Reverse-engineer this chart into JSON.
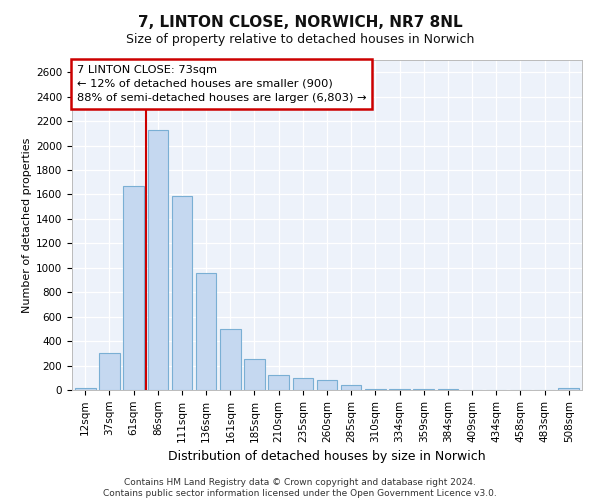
{
  "title": "7, LINTON CLOSE, NORWICH, NR7 8NL",
  "subtitle": "Size of property relative to detached houses in Norwich",
  "xlabel": "Distribution of detached houses by size in Norwich",
  "ylabel": "Number of detached properties",
  "categories": [
    "12sqm",
    "37sqm",
    "61sqm",
    "86sqm",
    "111sqm",
    "136sqm",
    "161sqm",
    "185sqm",
    "210sqm",
    "235sqm",
    "260sqm",
    "285sqm",
    "310sqm",
    "334sqm",
    "359sqm",
    "384sqm",
    "409sqm",
    "434sqm",
    "458sqm",
    "483sqm",
    "508sqm"
  ],
  "values": [
    15,
    300,
    1670,
    2130,
    1585,
    960,
    500,
    250,
    120,
    100,
    80,
    40,
    5,
    5,
    5,
    5,
    3,
    3,
    3,
    3,
    15
  ],
  "bar_color": "#c5d8f0",
  "bar_edge_color": "#7aafd4",
  "vline_color": "#cc0000",
  "vline_pos": 2.5,
  "annotation_text": "7 LINTON CLOSE: 73sqm\n← 12% of detached houses are smaller (900)\n88% of semi-detached houses are larger (6,803) →",
  "annotation_box_facecolor": "#ffffff",
  "annotation_box_edgecolor": "#cc0000",
  "ylim": [
    0,
    2700
  ],
  "yticks": [
    0,
    200,
    400,
    600,
    800,
    1000,
    1200,
    1400,
    1600,
    1800,
    2000,
    2200,
    2400,
    2600
  ],
  "plot_bg_color": "#edf2fa",
  "grid_color": "#ffffff",
  "title_fontsize": 11,
  "subtitle_fontsize": 9,
  "ylabel_fontsize": 8,
  "xlabel_fontsize": 9,
  "tick_fontsize": 7.5,
  "footer1": "Contains HM Land Registry data © Crown copyright and database right 2024.",
  "footer2": "Contains public sector information licensed under the Open Government Licence v3.0."
}
